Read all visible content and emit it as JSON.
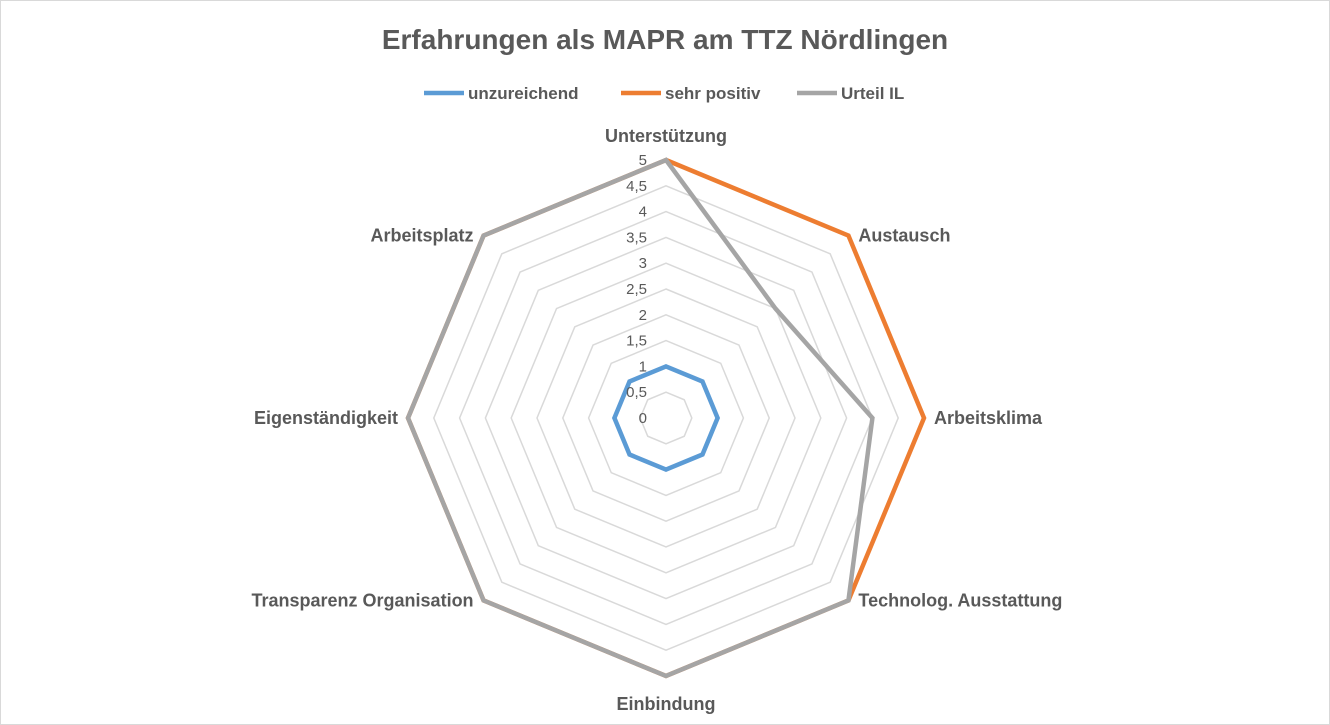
{
  "chart_data": {
    "type": "radar",
    "title": "Erfahrungen als MAPR am TTZ Nördlingen",
    "categories": [
      "Unterstützung",
      "Austausch",
      "Arbeitsklima",
      "Technolog. Ausstattung",
      "Einbindung",
      "Transparenz Organisation",
      "Eigenständigkeit",
      "Arbeitsplatz"
    ],
    "series": [
      {
        "name": "unzureichend",
        "color": "#5b9bd5",
        "values": [
          1,
          1,
          1,
          1,
          1,
          1,
          1,
          1
        ]
      },
      {
        "name": "sehr positiv",
        "color": "#ed7d31",
        "values": [
          5,
          5,
          5,
          5,
          5,
          5,
          5,
          5
        ]
      },
      {
        "name": "Urteil IL",
        "color": "#a5a5a5",
        "values": [
          5,
          3,
          4,
          5,
          5,
          5,
          5,
          5
        ]
      }
    ],
    "rlim": [
      0,
      5
    ],
    "ticks": [
      "0",
      "0,5",
      "1",
      "1,5",
      "2",
      "2,5",
      "3",
      "3,5",
      "4",
      "4,5",
      "5"
    ],
    "tick_values": [
      0,
      0.5,
      1,
      1.5,
      2,
      2.5,
      3,
      3.5,
      4,
      4.5,
      5
    ],
    "grid": true,
    "gridline_color": "#d9d9d9",
    "legend_position": "top"
  }
}
